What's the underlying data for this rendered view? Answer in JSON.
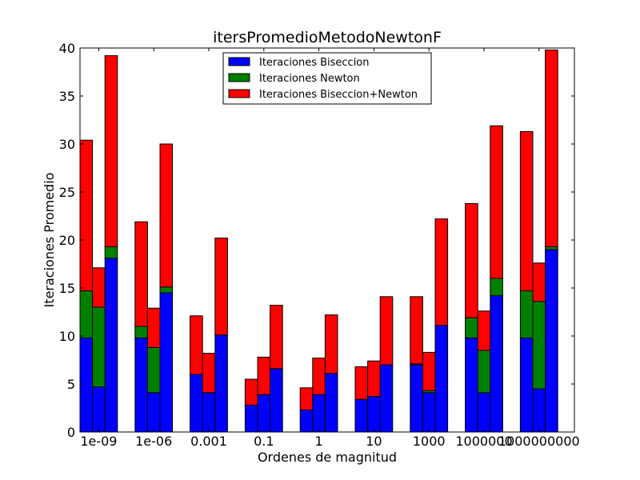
{
  "chart_data": {
    "type": "bar",
    "stacked": true,
    "title": "itersPromedioMetodoNewtonF",
    "xlabel": "Ordenes de magnitud",
    "ylabel": "Iteraciones Promedio",
    "ylim": [
      0,
      40
    ],
    "yticks": [
      0,
      5,
      10,
      15,
      20,
      25,
      30,
      35,
      40
    ],
    "groups": [
      "1e-09",
      "1e-06",
      "0.001",
      "0.1",
      "1",
      "10",
      "1000",
      "1000000",
      "1000000000"
    ],
    "bars_per_group": 3,
    "legend_position": "top-center",
    "grid": false,
    "series": [
      {
        "name": "Iteraciones Biseccion",
        "color": "#0000ff",
        "values": [
          [
            9.8,
            4.7,
            18.1
          ],
          [
            9.8,
            4.1,
            14.5
          ],
          [
            6.0,
            4.1,
            10.1
          ],
          [
            2.8,
            3.9,
            6.6
          ],
          [
            2.3,
            3.9,
            6.1
          ],
          [
            3.4,
            3.7,
            7.0
          ],
          [
            7.0,
            4.1,
            11.1
          ],
          [
            9.8,
            4.1,
            14.2
          ],
          [
            9.8,
            4.5,
            19.0
          ]
        ]
      },
      {
        "name": "Iteraciones Newton",
        "color": "#008000",
        "values": [
          [
            4.9,
            8.3,
            1.2
          ],
          [
            1.2,
            4.7,
            0.6
          ],
          [
            0.0,
            0.0,
            0.0
          ],
          [
            0.0,
            0.0,
            0.0
          ],
          [
            0.0,
            0.0,
            0.0
          ],
          [
            0.0,
            0.0,
            0.0
          ],
          [
            0.1,
            0.2,
            0.0
          ],
          [
            2.1,
            4.4,
            1.8
          ],
          [
            4.9,
            9.1,
            0.3
          ]
        ]
      },
      {
        "name": "Iteraciones Biseccion+Newton",
        "color": "#ff0000",
        "values": [
          [
            15.7,
            4.1,
            19.9
          ],
          [
            10.9,
            4.1,
            14.9
          ],
          [
            6.1,
            4.1,
            10.1
          ],
          [
            2.7,
            3.9,
            6.6
          ],
          [
            2.3,
            3.8,
            6.1
          ],
          [
            3.4,
            3.7,
            7.1
          ],
          [
            7.0,
            4.0,
            11.1
          ],
          [
            11.9,
            4.1,
            15.9
          ],
          [
            16.6,
            4.0,
            20.5
          ]
        ]
      }
    ]
  }
}
